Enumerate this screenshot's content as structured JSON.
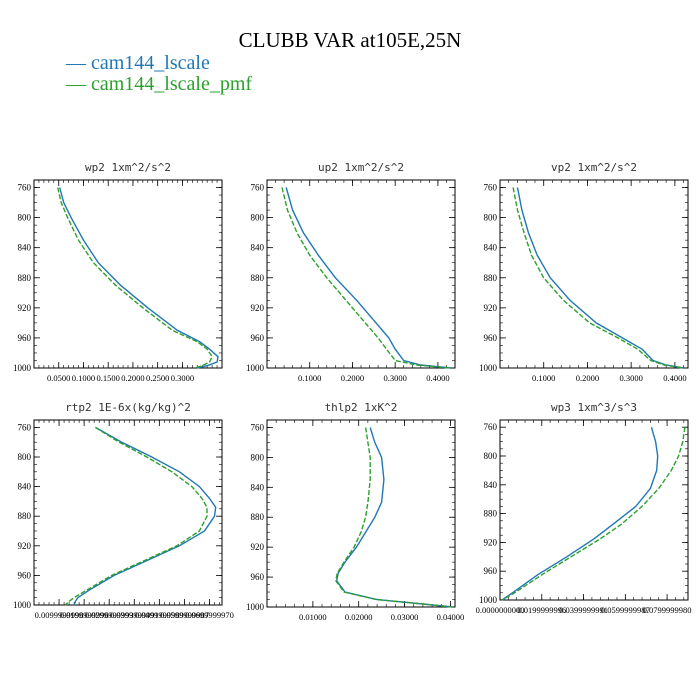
{
  "title": "CLUBB VAR at105E,25N",
  "legend": [
    {
      "label": "cam144_lscale",
      "color": "#1f77b4"
    },
    {
      "label": "cam144_lscale_pmf",
      "color": "#2ca02c"
    }
  ],
  "chart_data": [
    {
      "type": "line",
      "title": "wp2   1xm^2/s^2",
      "ylim": [
        1000,
        750
      ],
      "yticks": [
        760,
        800,
        840,
        880,
        920,
        960,
        1000
      ],
      "xlim": [
        0.0,
        0.38
      ],
      "xtick_labels": [
        "0.0500",
        "0.1000",
        "0.1500",
        "0.2000",
        "0.2500",
        "0.3000"
      ],
      "xtick_values": [
        0.05,
        0.1,
        0.15,
        0.2,
        0.25,
        0.3
      ],
      "series": [
        {
          "name": "cam144_lscale",
          "x": [
            0.052,
            0.06,
            0.075,
            0.1,
            0.13,
            0.175,
            0.23,
            0.29,
            0.335,
            0.355,
            0.372,
            0.37,
            0.35,
            0.33
          ],
          "y": [
            760,
            780,
            800,
            830,
            860,
            890,
            920,
            950,
            965,
            975,
            985,
            992,
            997,
            1000
          ]
        },
        {
          "name": "cam144_lscale_pmf",
          "x": [
            0.048,
            0.055,
            0.068,
            0.09,
            0.12,
            0.165,
            0.22,
            0.28,
            0.33,
            0.35,
            0.36,
            0.355,
            0.34,
            0.325
          ],
          "y": [
            760,
            780,
            800,
            830,
            860,
            890,
            920,
            950,
            965,
            975,
            985,
            992,
            997,
            1000
          ]
        }
      ]
    },
    {
      "type": "line",
      "title": "up2   1xm^2/s^2",
      "ylim": [
        1000,
        750
      ],
      "yticks": [
        760,
        800,
        840,
        880,
        920,
        960,
        1000
      ],
      "xlim": [
        0.0,
        0.44
      ],
      "xtick_labels": [
        "0.1000",
        "0.2000",
        "0.3000",
        "0.4000"
      ],
      "xtick_values": [
        0.1,
        0.2,
        0.3,
        0.4
      ],
      "series": [
        {
          "name": "cam144_lscale",
          "x": [
            0.045,
            0.06,
            0.085,
            0.12,
            0.16,
            0.21,
            0.255,
            0.285,
            0.3,
            0.32,
            0.36,
            0.43
          ],
          "y": [
            760,
            790,
            820,
            850,
            880,
            910,
            940,
            960,
            975,
            990,
            996,
            1000
          ]
        },
        {
          "name": "cam144_lscale_pmf",
          "x": [
            0.035,
            0.048,
            0.07,
            0.1,
            0.14,
            0.185,
            0.23,
            0.26,
            0.28,
            0.3,
            0.35,
            0.43
          ],
          "y": [
            760,
            790,
            820,
            850,
            880,
            910,
            940,
            960,
            975,
            990,
            996,
            1000
          ]
        }
      ]
    },
    {
      "type": "line",
      "title": "vp2   1xm^2/s^2",
      "ylim": [
        1000,
        750
      ],
      "yticks": [
        760,
        800,
        840,
        880,
        920,
        960,
        1000
      ],
      "xlim": [
        0.0,
        0.43
      ],
      "xtick_labels": [
        "0.1000",
        "0.2000",
        "0.3000",
        "0.4000"
      ],
      "xtick_values": [
        0.1,
        0.2,
        0.3,
        0.4
      ],
      "series": [
        {
          "name": "cam144_lscale",
          "x": [
            0.04,
            0.05,
            0.065,
            0.085,
            0.115,
            0.16,
            0.22,
            0.28,
            0.325,
            0.35,
            0.38,
            0.42
          ],
          "y": [
            760,
            790,
            820,
            850,
            880,
            910,
            940,
            960,
            975,
            990,
            996,
            1000
          ]
        },
        {
          "name": "cam144_lscale_pmf",
          "x": [
            0.03,
            0.04,
            0.055,
            0.072,
            0.1,
            0.145,
            0.205,
            0.27,
            0.315,
            0.345,
            0.375,
            0.42
          ],
          "y": [
            760,
            790,
            820,
            850,
            880,
            910,
            940,
            960,
            975,
            990,
            996,
            1000
          ]
        }
      ]
    },
    {
      "type": "line",
      "title": "rtp2   1E-6x(kg/kg)^2",
      "ylim": [
        1000,
        750
      ],
      "yticks": [
        760,
        800,
        840,
        880,
        920,
        960,
        1000
      ],
      "xlim": [
        0.0,
        0.075
      ],
      "xtick_labels": [
        "0.0099999998",
        "0.0199999996",
        "0.0299999993",
        "0.0399999991",
        "0.0499999989",
        "0.0599999987",
        "0.0699999970"
      ],
      "xtick_values": [
        0.01,
        0.02,
        0.03,
        0.04,
        0.05,
        0.06,
        0.07
      ],
      "series": [
        {
          "name": "cam144_lscale",
          "x": [
            0.0245,
            0.035,
            0.047,
            0.058,
            0.066,
            0.07,
            0.0725,
            0.072,
            0.068,
            0.058,
            0.045,
            0.032,
            0.022,
            0.0175,
            0.0165,
            0.016
          ],
          "y": [
            760,
            780,
            800,
            820,
            840,
            856,
            868,
            880,
            900,
            920,
            940,
            960,
            980,
            990,
            995,
            1000
          ]
        },
        {
          "name": "cam144_lscale_pmf",
          "x": [
            0.0245,
            0.034,
            0.045,
            0.055,
            0.063,
            0.067,
            0.069,
            0.069,
            0.066,
            0.057,
            0.044,
            0.031,
            0.021,
            0.016,
            0.014,
            0.0125
          ],
          "y": [
            760,
            780,
            800,
            820,
            840,
            856,
            868,
            880,
            900,
            920,
            940,
            960,
            980,
            990,
            995,
            1000
          ]
        }
      ]
    },
    {
      "type": "line",
      "title": "thlp2   1xK^2",
      "ylim": [
        1000,
        750
      ],
      "yticks": [
        760,
        800,
        840,
        880,
        920,
        960,
        1000
      ],
      "xlim": [
        0.0,
        0.041
      ],
      "xtick_labels": [
        "0.01000",
        "0.02000",
        "0.03000",
        "0.04000"
      ],
      "xtick_values": [
        0.01,
        0.02,
        0.03,
        0.04
      ],
      "series": [
        {
          "name": "cam144_lscale",
          "x": [
            0.0225,
            0.0235,
            0.025,
            0.0255,
            0.025,
            0.0235,
            0.0215,
            0.0195,
            0.017,
            0.0155,
            0.0152,
            0.017,
            0.024,
            0.034,
            0.0405
          ],
          "y": [
            760,
            780,
            800,
            830,
            860,
            880,
            900,
            920,
            940,
            955,
            965,
            980,
            990,
            996,
            1000
          ]
        },
        {
          "name": "cam144_lscale_pmf",
          "x": [
            0.0215,
            0.022,
            0.0225,
            0.0225,
            0.022,
            0.0215,
            0.0205,
            0.019,
            0.0168,
            0.0153,
            0.015,
            0.0168,
            0.0238,
            0.034,
            0.0405
          ],
          "y": [
            760,
            780,
            800,
            830,
            860,
            880,
            900,
            920,
            940,
            955,
            965,
            980,
            990,
            996,
            1000
          ]
        }
      ]
    },
    {
      "type": "line",
      "title": "wp3   1xm^3/s^3",
      "ylim": [
        1000,
        750
      ],
      "yticks": [
        760,
        800,
        840,
        880,
        920,
        960,
        1000
      ],
      "xlim": [
        0.0,
        0.09
      ],
      "xtick_labels": [
        "0.0000000000",
        "0.0199999996",
        "0.0399999991",
        "0.0599999987",
        "0.0799999980"
      ],
      "xtick_values": [
        0.0,
        0.02,
        0.04,
        0.06,
        0.08
      ],
      "series": [
        {
          "name": "cam144_lscale",
          "x": [
            0.0725,
            0.0745,
            0.0755,
            0.075,
            0.072,
            0.065,
            0.054,
            0.045,
            0.032,
            0.018,
            0.006,
            0.001
          ],
          "y": [
            760,
            780,
            800,
            820,
            845,
            870,
            895,
            915,
            940,
            965,
            990,
            1000
          ]
        },
        {
          "name": "cam144_lscale_pmf",
          "x": [
            0.0885,
            0.0875,
            0.0855,
            0.082,
            0.076,
            0.068,
            0.058,
            0.048,
            0.034,
            0.02,
            0.007,
            0.001
          ],
          "y": [
            760,
            780,
            800,
            820,
            845,
            870,
            895,
            915,
            940,
            965,
            990,
            1000
          ]
        }
      ]
    }
  ]
}
